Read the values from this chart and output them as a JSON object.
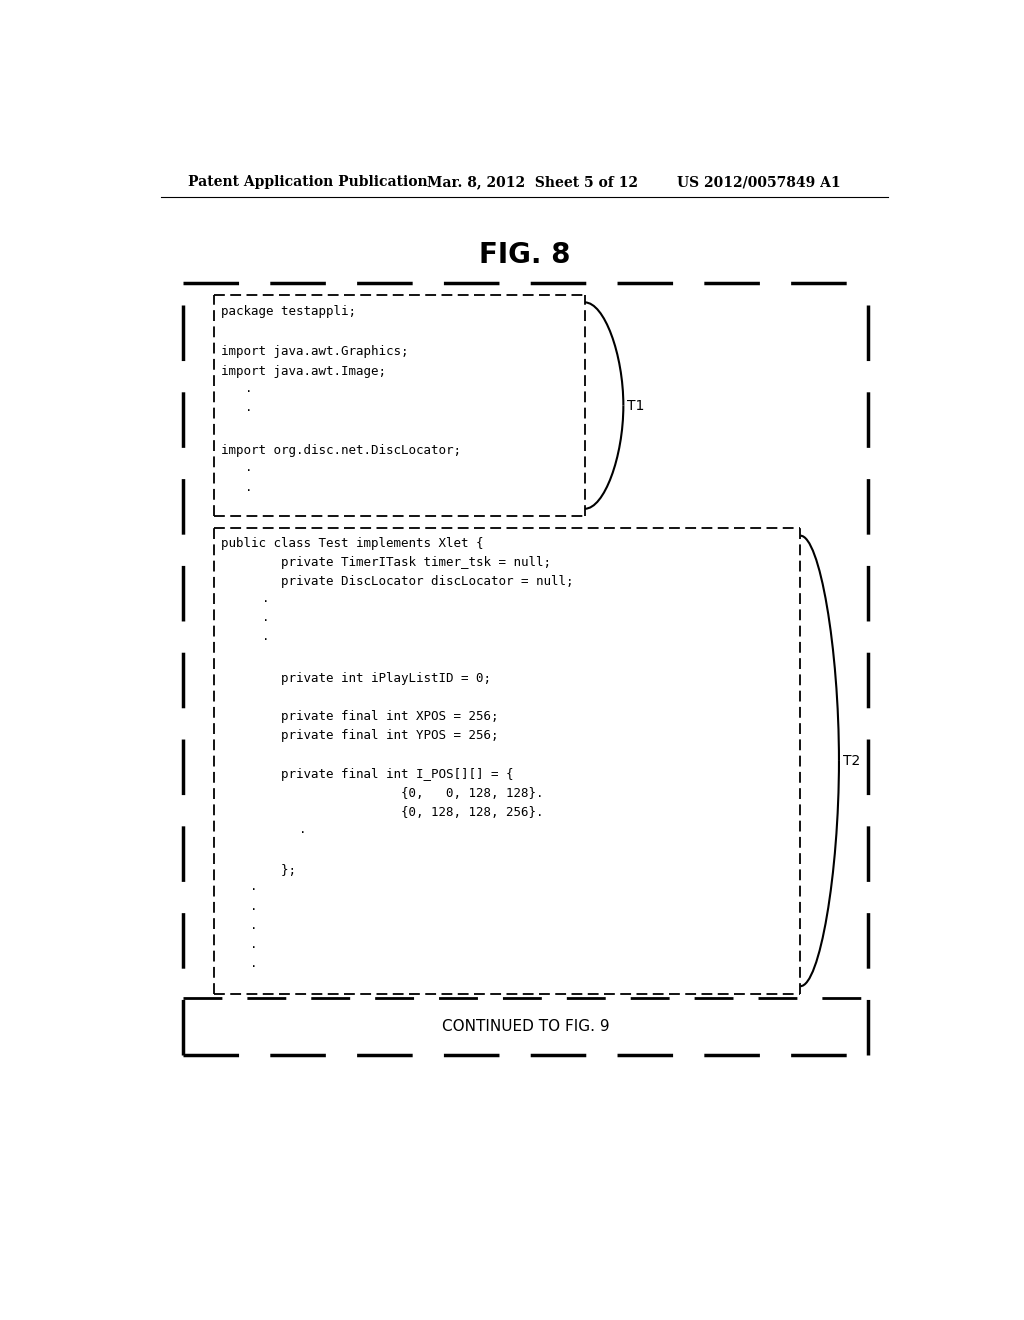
{
  "header_left": "Patent Application Publication",
  "header_mid": "Mar. 8, 2012  Sheet 5 of 12",
  "header_right": "US 2012/0057849 A1",
  "fig_title": "FIG. 8",
  "t1_label": "T1",
  "t2_label": "T2",
  "code_block1": [
    "package testappli;",
    "",
    "import java.awt.Graphics;",
    "import java.awt.Image;",
    "    ·",
    "    ·",
    "",
    "import org.disc.net.DiscLocator;",
    "    ·",
    "    ·"
  ],
  "code_block2": [
    "public class Test implements Xlet {",
    "        private TimerITask timer_tsk = null;",
    "        private DiscLocator discLocator = null;",
    "            ·",
    "            ·",
    "            ·",
    "",
    "        private int iPlayListID = 0;",
    "",
    "        private final int XPOS = 256;",
    "        private final int YPOS = 256;",
    "",
    "        private final int I_POS[][] = {",
    "                        {0,   0, 128, 128}.",
    "                        {0, 128, 128, 256}.",
    "                        ·",
    "",
    "        };",
    "        ·",
    "        ·",
    "        ·",
    "        ·",
    "        ·"
  ],
  "footer_text": "CONTINUED TO FIG. 9",
  "bg_color": "#ffffff",
  "text_color": "#000000",
  "code_font_size": 9,
  "header_font_size": 10
}
